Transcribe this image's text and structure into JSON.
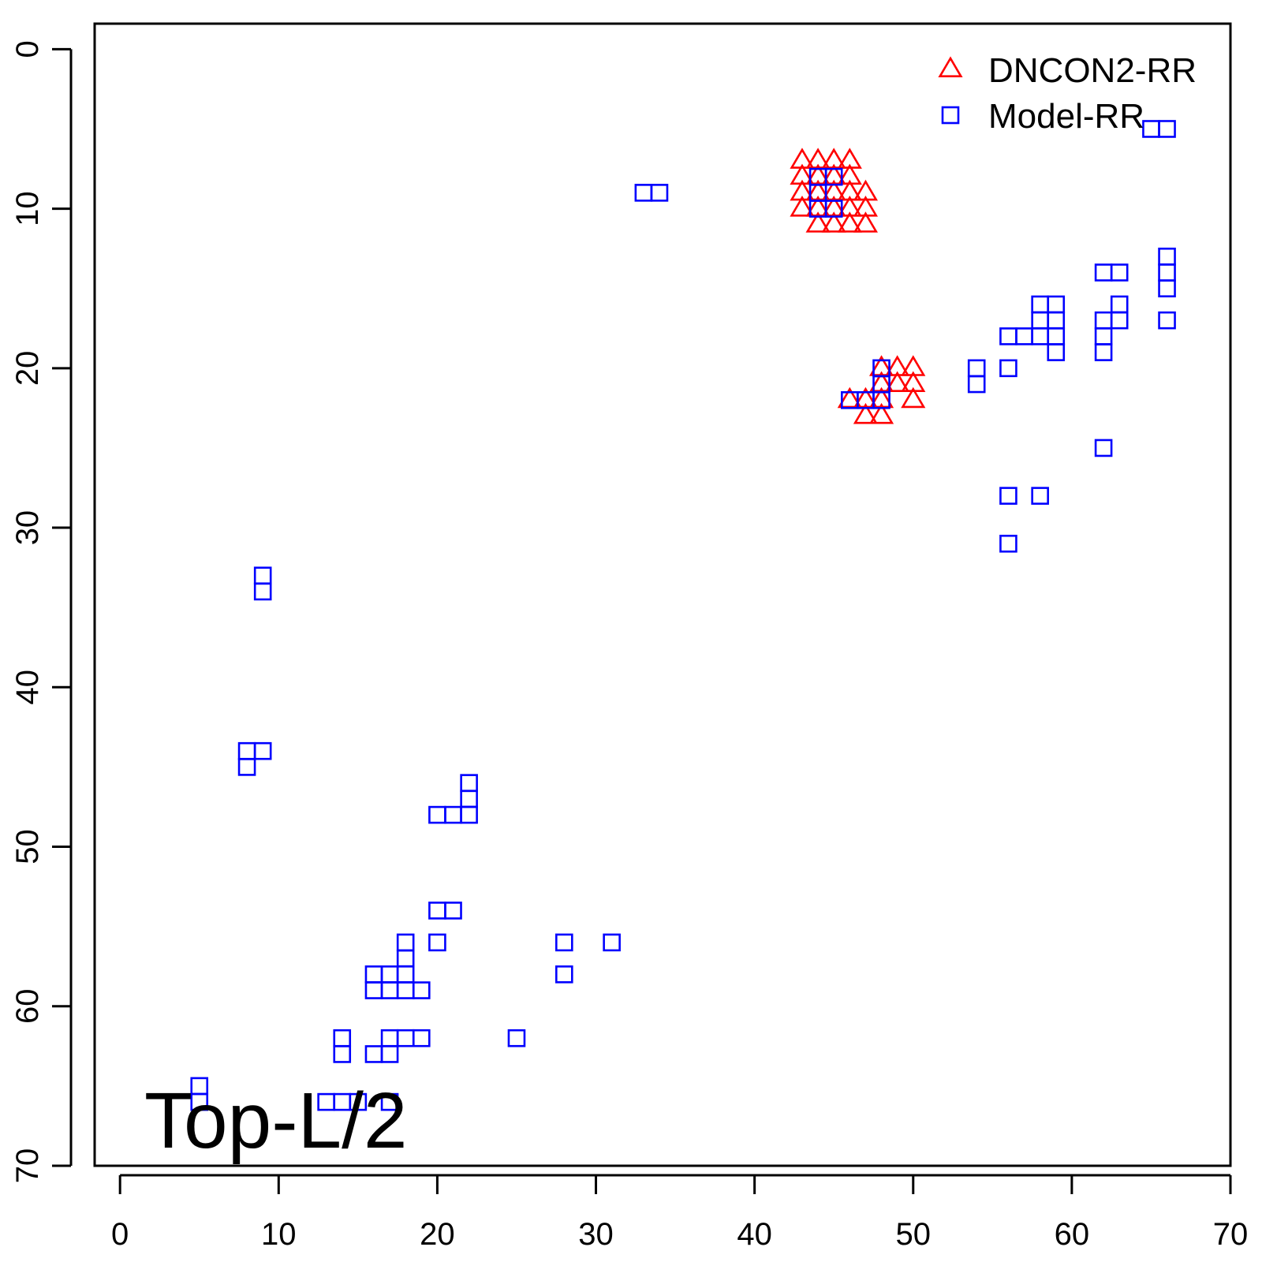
{
  "chart_data": {
    "type": "scatter",
    "title": "",
    "xlabel": "",
    "ylabel": "",
    "xlim": [
      -1.6,
      70
    ],
    "ylim": [
      -1.6,
      70
    ],
    "y_reversed": true,
    "x_ticks": [
      0,
      10,
      20,
      30,
      40,
      50,
      60,
      70
    ],
    "y_ticks": [
      0,
      10,
      20,
      30,
      40,
      50,
      60,
      70
    ],
    "grid": false,
    "legend": {
      "placement": "top-right",
      "entries": [
        {
          "label": "DNCON2-RR",
          "marker": "triangle",
          "color": "#ff0000"
        },
        {
          "label": "Model-RR",
          "marker": "square",
          "color": "#0000ff"
        }
      ]
    },
    "annotation": "Top-L/2",
    "series": [
      {
        "name": "DNCON2-RR",
        "marker": "triangle",
        "color": "#ff0000",
        "points": [
          [
            43,
            7
          ],
          [
            44,
            7
          ],
          [
            45,
            7
          ],
          [
            46,
            7
          ],
          [
            43,
            8
          ],
          [
            44,
            8
          ],
          [
            45,
            8
          ],
          [
            46,
            8
          ],
          [
            43,
            9
          ],
          [
            44,
            9
          ],
          [
            45,
            9
          ],
          [
            46,
            9
          ],
          [
            47,
            9
          ],
          [
            43,
            10
          ],
          [
            44,
            10
          ],
          [
            45,
            10
          ],
          [
            46,
            10
          ],
          [
            47,
            10
          ],
          [
            44,
            11
          ],
          [
            45,
            11
          ],
          [
            46,
            11
          ],
          [
            47,
            11
          ],
          [
            48,
            20
          ],
          [
            49,
            20
          ],
          [
            50,
            20
          ],
          [
            48,
            21
          ],
          [
            49,
            21
          ],
          [
            50,
            21
          ],
          [
            46,
            22
          ],
          [
            47,
            22
          ],
          [
            48,
            22
          ],
          [
            50,
            22
          ],
          [
            47,
            23
          ],
          [
            48,
            23
          ]
        ]
      },
      {
        "name": "Model-RR",
        "marker": "square",
        "color": "#0000ff",
        "points": [
          [
            33,
            9
          ],
          [
            34,
            9
          ],
          [
            44,
            8
          ],
          [
            45,
            8
          ],
          [
            44,
            9
          ],
          [
            44,
            10
          ],
          [
            45,
            10
          ],
          [
            48,
            20
          ],
          [
            48,
            21
          ],
          [
            48,
            22
          ],
          [
            46,
            22
          ],
          [
            47,
            22
          ],
          [
            54,
            20
          ],
          [
            54,
            21
          ],
          [
            56,
            18
          ],
          [
            56,
            20
          ],
          [
            57,
            18
          ],
          [
            58,
            16
          ],
          [
            59,
            16
          ],
          [
            58,
            17
          ],
          [
            59,
            17
          ],
          [
            58,
            18
          ],
          [
            59,
            18
          ],
          [
            59,
            19
          ],
          [
            62,
            14
          ],
          [
            63,
            14
          ],
          [
            62,
            17
          ],
          [
            62,
            18
          ],
          [
            62,
            19
          ],
          [
            63,
            16
          ],
          [
            63,
            17
          ],
          [
            66,
            13
          ],
          [
            66,
            14
          ],
          [
            66,
            15
          ],
          [
            66,
            17
          ],
          [
            65,
            5
          ],
          [
            66,
            5
          ],
          [
            62,
            25
          ],
          [
            56,
            28
          ],
          [
            58,
            28
          ],
          [
            56,
            31
          ],
          [
            9,
            33
          ],
          [
            9,
            34
          ],
          [
            8,
            44
          ],
          [
            9,
            44
          ],
          [
            8,
            45
          ],
          [
            22,
            46
          ],
          [
            22,
            47
          ],
          [
            20,
            48
          ],
          [
            21,
            48
          ],
          [
            22,
            48
          ],
          [
            20,
            54
          ],
          [
            21,
            54
          ],
          [
            20,
            56
          ],
          [
            28,
            56
          ],
          [
            31,
            56
          ],
          [
            28,
            58
          ],
          [
            18,
            56
          ],
          [
            18,
            57
          ],
          [
            16,
            58
          ],
          [
            17,
            58
          ],
          [
            18,
            58
          ],
          [
            16,
            59
          ],
          [
            17,
            59
          ],
          [
            18,
            59
          ],
          [
            19,
            59
          ],
          [
            14,
            62
          ],
          [
            17,
            62
          ],
          [
            18,
            62
          ],
          [
            19,
            62
          ],
          [
            25,
            62
          ],
          [
            14,
            63
          ],
          [
            16,
            63
          ],
          [
            17,
            63
          ],
          [
            5,
            65
          ],
          [
            5,
            66
          ],
          [
            13,
            66
          ],
          [
            14,
            66
          ],
          [
            15,
            66
          ],
          [
            17,
            66
          ]
        ]
      }
    ]
  }
}
